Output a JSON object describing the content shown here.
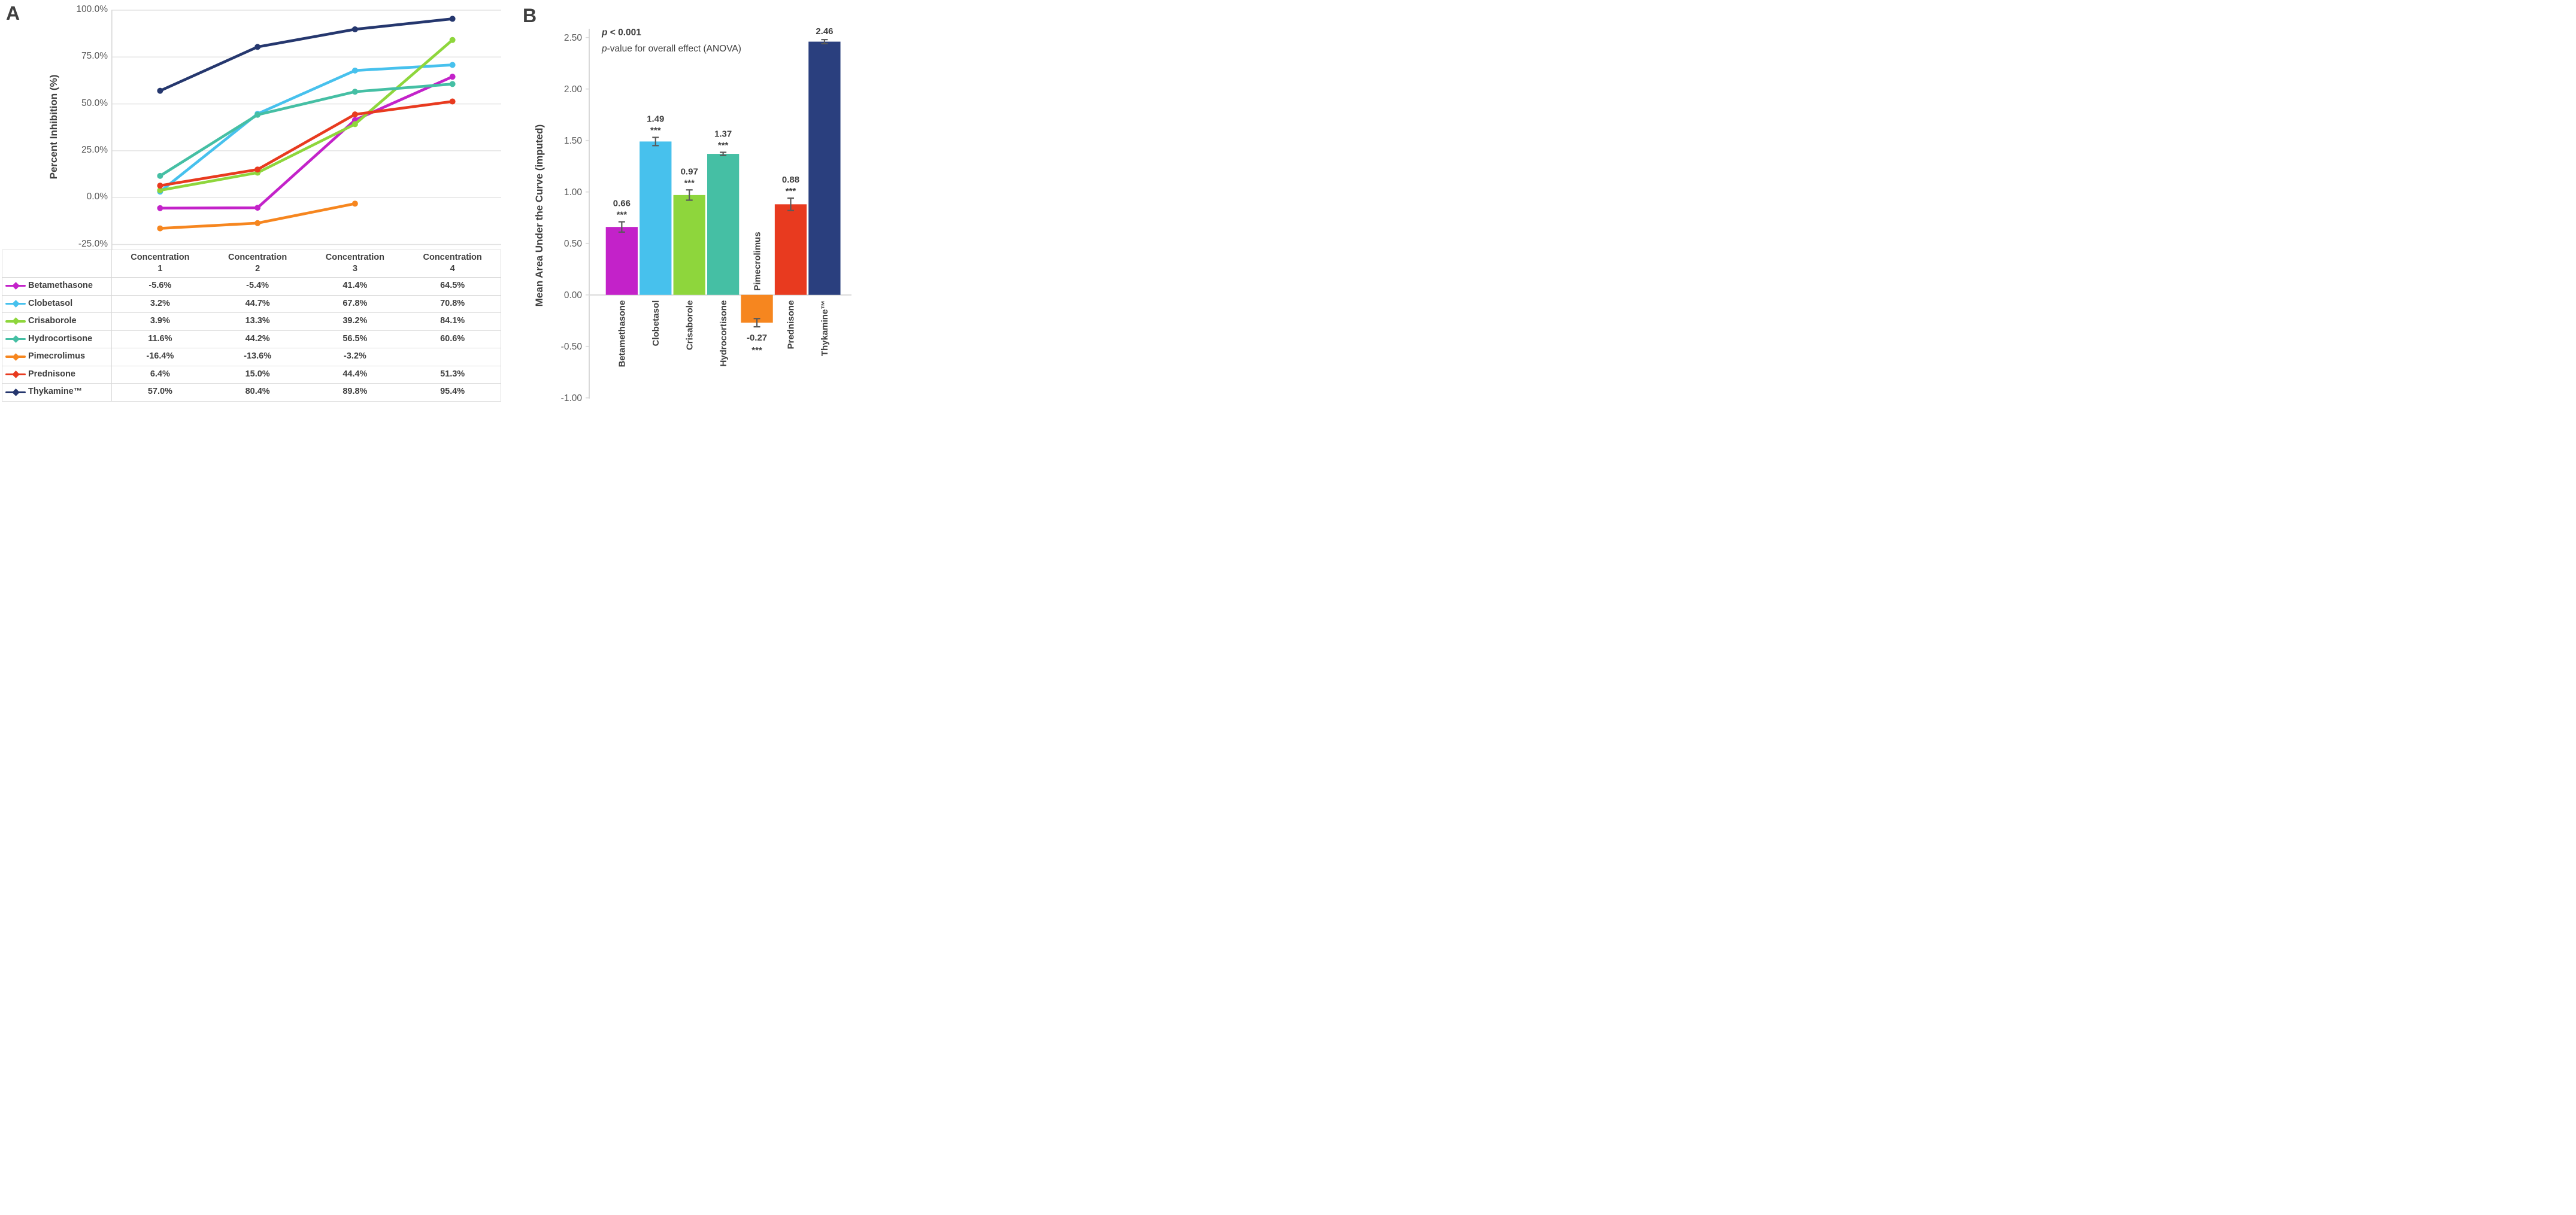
{
  "panel_a": {
    "label": "A",
    "ylabel": "Percent Inhibition (%)"
  },
  "panel_b": {
    "label": "B",
    "ylabel": "Mean Area Under the Curve (imputed)"
  },
  "colors": {
    "grid": "#e4e4e4",
    "axis": "#d9d9d9",
    "tick_text": "#595959",
    "dark_text": "#3f3f3f",
    "error_bar": "#595959"
  },
  "chart_data": [
    {
      "type": "line",
      "panel": "A",
      "title": "",
      "xlabel": "",
      "ylabel": "Percent Inhibition (%)",
      "categories": [
        "Concentration 1",
        "Concentration 2",
        "Concentration 3",
        "Concentration 4"
      ],
      "x_header_word": "Concentration",
      "x_header_numbers": [
        "1",
        "2",
        "3",
        "4"
      ],
      "ylim": [
        -25,
        100
      ],
      "grid": true,
      "y_ticks": [
        {
          "v": 100,
          "label": "100.0%"
        },
        {
          "v": 75,
          "label": "75.0%"
        },
        {
          "v": 50,
          "label": "50.0%"
        },
        {
          "v": 25,
          "label": "25.0%"
        },
        {
          "v": 0,
          "label": "0.0%"
        },
        {
          "v": -25,
          "label": "-25.0%"
        }
      ],
      "series": [
        {
          "name": "Betamethasone",
          "color": "#c322c9",
          "values": [
            -5.6,
            -5.4,
            41.4,
            64.5
          ],
          "display": [
            "-5.6%",
            "-5.4%",
            "41.4%",
            "64.5%"
          ]
        },
        {
          "name": "Clobetasol",
          "color": "#47c1ed",
          "values": [
            3.2,
            44.7,
            67.8,
            70.8
          ],
          "display": [
            "3.2%",
            "44.7%",
            "67.8%",
            "70.8%"
          ]
        },
        {
          "name": "Crisaborole",
          "color": "#8ed63c",
          "values": [
            3.9,
            13.3,
            39.2,
            84.1
          ],
          "display": [
            "3.9%",
            "13.3%",
            "39.2%",
            "84.1%"
          ]
        },
        {
          "name": "Hydrocortisone",
          "color": "#45bfa4",
          "values": [
            11.6,
            44.2,
            56.5,
            60.6
          ],
          "display": [
            "11.6%",
            "44.2%",
            "56.5%",
            "60.6%"
          ]
        },
        {
          "name": "Pimecrolimus",
          "color": "#f6861f",
          "values": [
            -16.4,
            -13.6,
            -3.2,
            null
          ],
          "display": [
            "-16.4%",
            "-13.6%",
            "-3.2%",
            ""
          ]
        },
        {
          "name": "Prednisone",
          "color": "#e83a1f",
          "values": [
            6.4,
            15.0,
            44.4,
            51.3
          ],
          "display": [
            "6.4%",
            "15.0%",
            "44.4%",
            "51.3%"
          ]
        },
        {
          "name": "Thykamine™",
          "color": "#25376e",
          "values": [
            57.0,
            80.4,
            89.8,
            95.4
          ],
          "display": [
            "57.0%",
            "80.4%",
            "89.8%",
            "95.4%"
          ]
        }
      ]
    },
    {
      "type": "bar",
      "panel": "B",
      "title": "",
      "xlabel": "",
      "ylabel": "Mean Area Under the Curve (imputed)",
      "ylim": [
        -1.0,
        2.5
      ],
      "grid": false,
      "y_ticks": [
        {
          "v": 2.5,
          "label": "2.50"
        },
        {
          "v": 2.0,
          "label": "2.00"
        },
        {
          "v": 1.5,
          "label": "1.50"
        },
        {
          "v": 1.0,
          "label": "1.00"
        },
        {
          "v": 0.5,
          "label": "0.50"
        },
        {
          "v": 0.0,
          "label": "0.00"
        },
        {
          "v": -0.5,
          "label": "-0.50"
        },
        {
          "v": -1.0,
          "label": "-1.00"
        }
      ],
      "annotation": {
        "line1_italic": "p",
        "line1_rest": " < 0.001",
        "line2_italic": "p",
        "line2_rest": "-value for overall effect (ANOVA)"
      },
      "bars": [
        {
          "name": "Betamethasone",
          "color": "#c322c9",
          "value": 0.66,
          "label": "0.66",
          "sig": "***",
          "error": 0.05
        },
        {
          "name": "Clobetasol",
          "color": "#47c1ed",
          "value": 1.49,
          "label": "1.49",
          "sig": "***",
          "error": 0.04
        },
        {
          "name": "Crisaborole",
          "color": "#8ed63c",
          "value": 0.97,
          "label": "0.97",
          "sig": "***",
          "error": 0.05
        },
        {
          "name": "Hydrocortisone",
          "color": "#45bfa4",
          "value": 1.37,
          "label": "1.37",
          "sig": "***",
          "error": 0.015
        },
        {
          "name": "Pimecrolimus",
          "color": "#f6861f",
          "value": -0.27,
          "label": "-0.27",
          "sig": "***",
          "error": 0.04
        },
        {
          "name": "Prednisone",
          "color": "#e83a1f",
          "value": 0.88,
          "label": "0.88",
          "sig": "***",
          "error": 0.06
        },
        {
          "name": "Thykamine™",
          "color": "#2a3f7e",
          "value": 2.46,
          "label": "2.46",
          "sig": "",
          "error": 0.02
        }
      ]
    }
  ]
}
